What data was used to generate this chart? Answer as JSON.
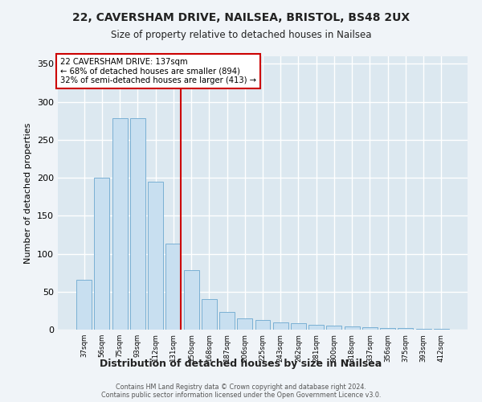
{
  "title_line1": "22, CAVERSHAM DRIVE, NAILSEA, BRISTOL, BS48 2UX",
  "title_line2": "Size of property relative to detached houses in Nailsea",
  "xlabel": "Distribution of detached houses by size in Nailsea",
  "ylabel": "Number of detached properties",
  "categories": [
    "37sqm",
    "56sqm",
    "75sqm",
    "93sqm",
    "112sqm",
    "131sqm",
    "150sqm",
    "168sqm",
    "187sqm",
    "206sqm",
    "225sqm",
    "243sqm",
    "262sqm",
    "281sqm",
    "300sqm",
    "318sqm",
    "337sqm",
    "356sqm",
    "375sqm",
    "393sqm",
    "412sqm"
  ],
  "values": [
    66,
    200,
    278,
    278,
    195,
    113,
    78,
    40,
    23,
    15,
    13,
    10,
    8,
    6,
    5,
    4,
    3,
    2,
    2,
    1,
    1
  ],
  "bar_color": "#c8dff0",
  "bar_edge_color": "#7ab0d4",
  "property_label": "22 CAVERSHAM DRIVE: 137sqm",
  "annotation_line1": "← 68% of detached houses are smaller (894)",
  "annotation_line2": "32% of semi-detached houses are larger (413) →",
  "vline_bin_index": 5,
  "vline_color": "#cc0000",
  "box_color": "#cc0000",
  "ylim": [
    0,
    360
  ],
  "yticks": [
    0,
    50,
    100,
    150,
    200,
    250,
    300,
    350
  ],
  "background_color": "#dce8f0",
  "fig_background_color": "#f0f4f8",
  "grid_color": "#ffffff",
  "footnote1": "Contains HM Land Registry data © Crown copyright and database right 2024.",
  "footnote2": "Contains public sector information licensed under the Open Government Licence v3.0."
}
